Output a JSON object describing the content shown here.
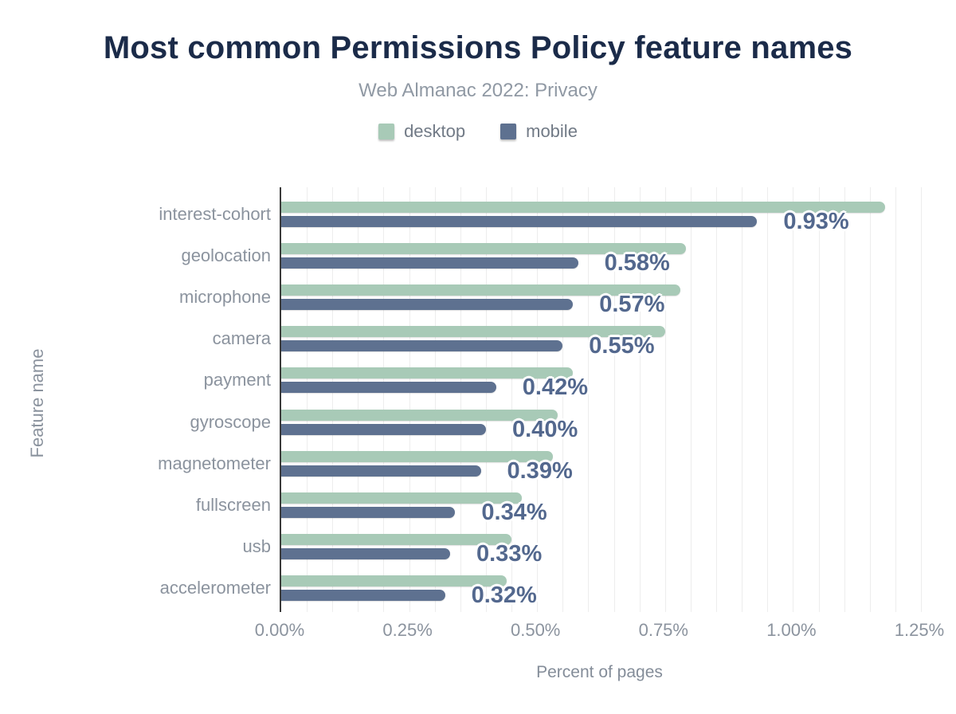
{
  "chart_data": {
    "type": "bar",
    "orientation": "horizontal",
    "title": "Most common Permissions Policy feature names",
    "subtitle": "Web Almanac 2022: Privacy",
    "categories": [
      "interest-cohort",
      "geolocation",
      "microphone",
      "camera",
      "payment",
      "gyroscope",
      "magnetometer",
      "fullscreen",
      "usb",
      "accelerometer"
    ],
    "series": [
      {
        "name": "desktop",
        "color": "#a8cab7",
        "values": [
          1.18,
          0.79,
          0.78,
          0.75,
          0.57,
          0.54,
          0.53,
          0.47,
          0.45,
          0.44
        ]
      },
      {
        "name": "mobile",
        "color": "#5e7190",
        "values": [
          0.93,
          0.58,
          0.57,
          0.55,
          0.42,
          0.4,
          0.39,
          0.34,
          0.33,
          0.32
        ]
      }
    ],
    "data_labels": [
      "0.93%",
      "0.58%",
      "0.57%",
      "0.55%",
      "0.42%",
      "0.40%",
      "0.39%",
      "0.34%",
      "0.33%",
      "0.32%"
    ],
    "data_labels_series": "mobile",
    "xlabel": "Percent of pages",
    "ylabel": "Feature name",
    "xlim": [
      0,
      1.25
    ],
    "x_tick_labels": [
      "0.00%",
      "0.25%",
      "0.50%",
      "0.75%",
      "1.00%",
      "1.25%"
    ],
    "grid": true,
    "grid_step": 0.05,
    "legend_position": "top"
  },
  "colors": {
    "background": "#ffffff",
    "title_text": "#1b2b49",
    "subtitle_text": "#9099a4",
    "legend_text": "#717a86",
    "axis_text": "#8b939e",
    "value_label_text": "#53688e",
    "desktop_bar": "#a8cab7",
    "mobile_bar": "#5e7190",
    "axis_line": "#3b3b3b",
    "gridline": "#ededed"
  }
}
